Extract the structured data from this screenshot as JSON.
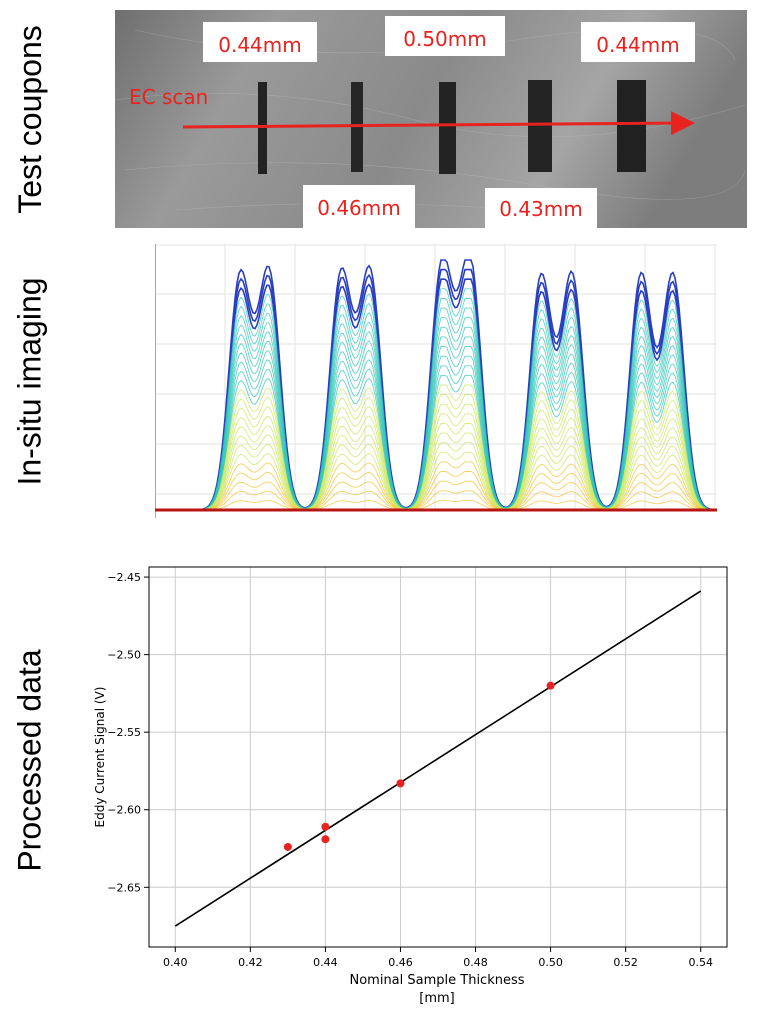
{
  "panel_labels": {
    "test_coupons": "Test coupons",
    "in_situ_imaging": "In-situ imaging",
    "processed_data": "Processed data"
  },
  "photo": {
    "scan_label": "EC scan",
    "thickness_tags": [
      "0.44mm",
      "0.50mm",
      "0.44mm",
      "0.46mm",
      "0.43mm"
    ],
    "colors": {
      "annotation": "#e8231f",
      "tag_bg": "#ffffff"
    }
  },
  "insitu": {
    "peak_count": 10,
    "colors": {
      "outer": "#2a3fbf",
      "mid": "#2ec4b6",
      "inner": "#c9e65a",
      "base": "#b81414"
    }
  },
  "chart_data": {
    "type": "scatter",
    "xlabel": "Nominal Sample Thickness\n[mm]",
    "xlabel_lines": [
      "Nominal Sample Thickness",
      "[mm]"
    ],
    "ylabel": "Eddy Current Signal (V)",
    "xlim": [
      0.393,
      0.547
    ],
    "ylim": [
      -2.6885,
      -2.4435
    ],
    "xticks": [
      0.4,
      0.42,
      0.44,
      0.46,
      0.48,
      0.5,
      0.52,
      0.54
    ],
    "xtick_labels": [
      "0.40",
      "0.42",
      "0.44",
      "0.46",
      "0.48",
      "0.50",
      "0.52",
      "0.54"
    ],
    "yticks": [
      -2.65,
      -2.6,
      -2.55,
      -2.5,
      -2.45
    ],
    "ytick_labels": [
      "−2.65",
      "−2.60",
      "−2.55",
      "−2.50",
      "−2.45"
    ],
    "grid": true,
    "series": [
      {
        "type": "scatter",
        "color": "#e8231f",
        "x": [
          0.43,
          0.44,
          0.44,
          0.46,
          0.5
        ],
        "y": [
          -2.624,
          -2.611,
          -2.619,
          -2.583,
          -2.52
        ]
      },
      {
        "type": "line",
        "color": "#000000",
        "x": [
          0.4,
          0.54
        ],
        "y": [
          -2.675,
          -2.459
        ]
      }
    ]
  }
}
